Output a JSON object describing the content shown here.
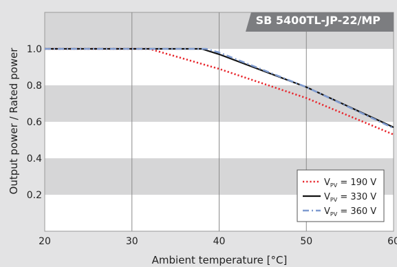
{
  "chart_data": {
    "type": "line",
    "title": "SB 5400TL-JP-22/MP",
    "xlabel": "Ambient temperature [°C]",
    "ylabel": "Output power / Rated power",
    "xlim": [
      20,
      60
    ],
    "ylim": [
      0,
      1.2
    ],
    "xticks": [
      "20",
      "30",
      "40",
      "50",
      "60"
    ],
    "yticks": [
      "0.2",
      "0.4",
      "0.6",
      "0.8",
      "1.0"
    ],
    "grid": "horizontal gray/white bands, vertical lines at 30, 40, 50",
    "legend_position": "bottom-right",
    "series": [
      {
        "name_main": "V",
        "name_sub": "PV",
        "name_tail": " = 190 V",
        "style": "dotted",
        "color": "#e8262c",
        "x": [
          20,
          32,
          40,
          50,
          60
        ],
        "y": [
          1.0,
          1.0,
          0.89,
          0.73,
          0.53
        ]
      },
      {
        "name_main": "V",
        "name_sub": "PV",
        "name_tail": " = 330 V",
        "style": "solid",
        "color": "#111111",
        "x": [
          20,
          38,
          40,
          50,
          60
        ],
        "y": [
          1.0,
          1.0,
          0.97,
          0.79,
          0.57
        ]
      },
      {
        "name_main": "V",
        "name_sub": "PV",
        "name_tail": " = 360 V",
        "style": "dashdot",
        "color": "#7f9bd0",
        "x": [
          20,
          38.5,
          40,
          50,
          60
        ],
        "y": [
          1.0,
          1.0,
          0.98,
          0.79,
          0.565
        ]
      }
    ]
  },
  "colors": {
    "band_gray": "#d6d6d7",
    "band_white": "#ffffff",
    "title_bg": "#7c7d80",
    "title_text": "#ffffff",
    "background": "#e3e3e4"
  }
}
